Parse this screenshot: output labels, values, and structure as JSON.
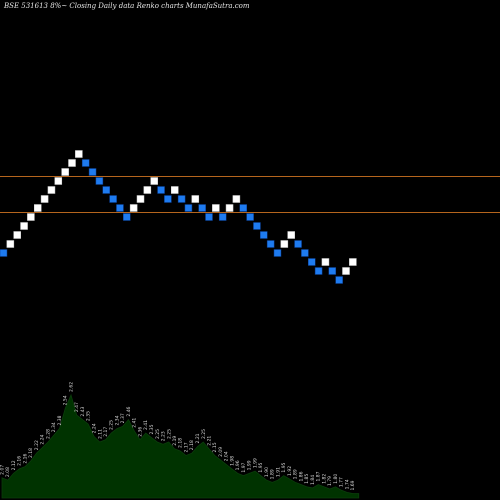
{
  "chart_data": {
    "type": "renko",
    "title": "BSE 531613 8%~   Closing Daily data  Renko  charts MunafaSutra.com",
    "colors": {
      "background": "#000000",
      "up_brick": "#ffffff",
      "down_brick": "#1e7bf0",
      "brick_border": "#0a3a8a",
      "horizontal_lines": "#b5651d",
      "volume_area": "#003300",
      "volume_outline": "#0b3d0b"
    },
    "horizontal_lines": [
      2.21,
      2.13
    ],
    "bricks": [
      {
        "d": "down",
        "v": 2.04
      },
      {
        "d": "up",
        "v": 2.06
      },
      {
        "d": "up",
        "v": 2.08
      },
      {
        "d": "up",
        "v": 2.1
      },
      {
        "d": "up",
        "v": 2.12
      },
      {
        "d": "up",
        "v": 2.14
      },
      {
        "d": "up",
        "v": 2.16
      },
      {
        "d": "up",
        "v": 2.18
      },
      {
        "d": "up",
        "v": 2.2
      },
      {
        "d": "up",
        "v": 2.22
      },
      {
        "d": "up",
        "v": 2.24
      },
      {
        "d": "up",
        "v": 2.26
      },
      {
        "d": "down",
        "v": 2.24
      },
      {
        "d": "down",
        "v": 2.22
      },
      {
        "d": "down",
        "v": 2.2
      },
      {
        "d": "down",
        "v": 2.18
      },
      {
        "d": "down",
        "v": 2.16
      },
      {
        "d": "down",
        "v": 2.14
      },
      {
        "d": "down",
        "v": 2.12
      },
      {
        "d": "up",
        "v": 2.14
      },
      {
        "d": "up",
        "v": 2.16
      },
      {
        "d": "up",
        "v": 2.18
      },
      {
        "d": "up",
        "v": 2.2
      },
      {
        "d": "down",
        "v": 2.18
      },
      {
        "d": "down",
        "v": 2.16
      },
      {
        "d": "up",
        "v": 2.18
      },
      {
        "d": "down",
        "v": 2.16
      },
      {
        "d": "down",
        "v": 2.14
      },
      {
        "d": "up",
        "v": 2.16
      },
      {
        "d": "down",
        "v": 2.14
      },
      {
        "d": "down",
        "v": 2.12
      },
      {
        "d": "up",
        "v": 2.14
      },
      {
        "d": "down",
        "v": 2.12
      },
      {
        "d": "up",
        "v": 2.14
      },
      {
        "d": "up",
        "v": 2.16
      },
      {
        "d": "down",
        "v": 2.14
      },
      {
        "d": "down",
        "v": 2.12
      },
      {
        "d": "down",
        "v": 2.1
      },
      {
        "d": "down",
        "v": 2.08
      },
      {
        "d": "down",
        "v": 2.06
      },
      {
        "d": "down",
        "v": 2.04
      },
      {
        "d": "up",
        "v": 2.06
      },
      {
        "d": "up",
        "v": 2.08
      },
      {
        "d": "down",
        "v": 2.06
      },
      {
        "d": "down",
        "v": 2.04
      },
      {
        "d": "down",
        "v": 2.02
      },
      {
        "d": "down",
        "v": 2.0
      },
      {
        "d": "up",
        "v": 2.02
      },
      {
        "d": "down",
        "v": 2.0
      },
      {
        "d": "down",
        "v": 1.98
      },
      {
        "d": "up",
        "v": 2.0
      },
      {
        "d": "up",
        "v": 2.02
      }
    ],
    "volume_labels": [
      "2.07",
      "2.08",
      "2.12",
      "2.16",
      "2.16",
      "2.18",
      "2.22",
      "2.24",
      "2.28",
      "2.34",
      "2.38",
      "2.54",
      "2.62",
      "2.47",
      "2.43",
      "2.35",
      "2.24",
      "2.11",
      "2.17",
      "2.25",
      "2.34",
      "2.37",
      "2.46",
      "2.41",
      "2.36",
      "2.41",
      "2.35",
      "2.25",
      "2.23",
      "2.25",
      "2.19",
      "2.18",
      "2.17",
      "2.18",
      "2.21",
      "2.25",
      "2.21",
      "2.15",
      "2.09",
      "2.04",
      "1.98",
      "1.96",
      "1.97",
      "1.99",
      "1.99",
      "1.95",
      "1.90",
      "1.89",
      "1.91",
      "1.95",
      "1.92",
      "1.89",
      "1.86",
      "1.85",
      "1.84",
      "1.87",
      "1.82",
      "1.79",
      "1.80",
      "1.77",
      "1.74",
      "1.69"
    ],
    "volume_heights": [
      0.18,
      0.16,
      0.22,
      0.26,
      0.28,
      0.33,
      0.4,
      0.45,
      0.5,
      0.56,
      0.62,
      0.8,
      0.92,
      0.74,
      0.7,
      0.66,
      0.55,
      0.5,
      0.52,
      0.58,
      0.62,
      0.64,
      0.7,
      0.6,
      0.52,
      0.58,
      0.54,
      0.5,
      0.48,
      0.5,
      0.44,
      0.42,
      0.38,
      0.4,
      0.46,
      0.5,
      0.44,
      0.38,
      0.34,
      0.3,
      0.26,
      0.22,
      0.2,
      0.22,
      0.24,
      0.2,
      0.16,
      0.14,
      0.16,
      0.2,
      0.17,
      0.14,
      0.12,
      0.1,
      0.09,
      0.12,
      0.1,
      0.08,
      0.1,
      0.07,
      0.05,
      0.04
    ]
  }
}
